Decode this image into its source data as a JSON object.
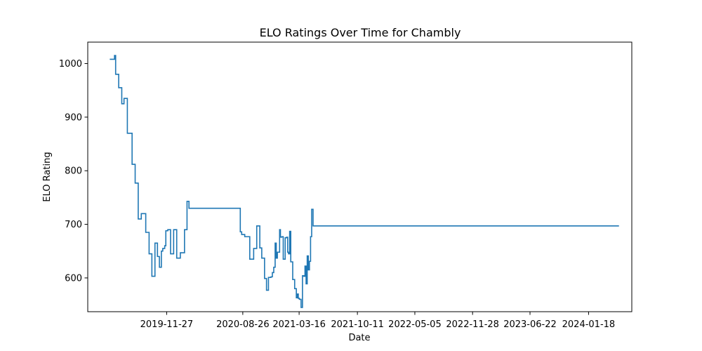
{
  "chart_data": {
    "type": "line",
    "title": "ELO Ratings Over Time for Chambly",
    "xlabel": "Date",
    "ylabel": "ELO Rating",
    "grid": false,
    "legend": "none",
    "color": "#1f77b4",
    "x_ticks": [
      "2019-11-27",
      "2020-08-26",
      "2021-03-16",
      "2021-10-11",
      "2022-05-05",
      "2022-11-28",
      "2023-06-22",
      "2024-01-18"
    ],
    "y_ticks": [
      600,
      700,
      800,
      900,
      1000
    ],
    "xlim": [
      "2019-02-17",
      "2024-06-21"
    ],
    "ylim": [
      537,
      1040
    ],
    "x": [
      "2019-05-07",
      "2019-05-24",
      "2019-05-28",
      "2019-06-08",
      "2019-06-19",
      "2019-06-27",
      "2019-07-09",
      "2019-07-26",
      "2019-08-06",
      "2019-08-17",
      "2019-08-28",
      "2019-09-13",
      "2019-09-25",
      "2019-10-05",
      "2019-10-16",
      "2019-10-25",
      "2019-11-01",
      "2019-11-08",
      "2019-11-13",
      "2019-11-20",
      "2019-11-24",
      "2019-12-01",
      "2019-12-11",
      "2019-12-22",
      "2020-01-02",
      "2020-01-15",
      "2020-01-30",
      "2020-02-08",
      "2020-02-15",
      "2020-02-18",
      "2020-02-22",
      "2020-02-26",
      "2020-03-02",
      "2020-03-10",
      "2020-03-17",
      "2020-03-23",
      "2020-08-17",
      "2020-08-22",
      "2020-09-02",
      "2020-09-13",
      "2020-09-20",
      "2020-10-04",
      "2020-10-15",
      "2020-10-26",
      "2020-11-02",
      "2020-11-12",
      "2020-11-19",
      "2020-11-26",
      "2020-12-05",
      "2020-12-10",
      "2020-12-15",
      "2020-12-20",
      "2020-12-24",
      "2020-12-28",
      "2021-01-05",
      "2021-01-08",
      "2021-01-13",
      "2021-01-18",
      "2021-01-25",
      "2021-01-30",
      "2021-02-03",
      "2021-02-06",
      "2021-02-10",
      "2021-02-14",
      "2021-02-21",
      "2021-02-28",
      "2021-03-06",
      "2021-03-10",
      "2021-03-13",
      "2021-03-17",
      "2021-03-23",
      "2021-03-28",
      "2021-04-02",
      "2021-04-06",
      "2021-04-10",
      "2021-04-14",
      "2021-04-18",
      "2021-04-22",
      "2021-04-26",
      "2021-04-30",
      "2021-05-05",
      "2021-05-10",
      "2021-05-15",
      "2021-05-19",
      "2021-05-24",
      "2021-06-01",
      "2024-05-06"
    ],
    "y": [
      1008,
      1015,
      980,
      955,
      925,
      935,
      870,
      812,
      777,
      710,
      720,
      685,
      645,
      603,
      665,
      640,
      620,
      650,
      655,
      660,
      688,
      690,
      645,
      690,
      637,
      647,
      690,
      743,
      730,
      730,
      730,
      730,
      730,
      730,
      730,
      730,
      686,
      681,
      677,
      677,
      635,
      655,
      697,
      656,
      637,
      599,
      577,
      601,
      602,
      610,
      620,
      665,
      637,
      648,
      690,
      676,
      677,
      635,
      675,
      676,
      648,
      645,
      687,
      630,
      597,
      580,
      563,
      570,
      562,
      560,
      545,
      604,
      603,
      622,
      589,
      641,
      615,
      631,
      677,
      728,
      697,
      697,
      697,
      697,
      697,
      697,
      697
    ]
  }
}
